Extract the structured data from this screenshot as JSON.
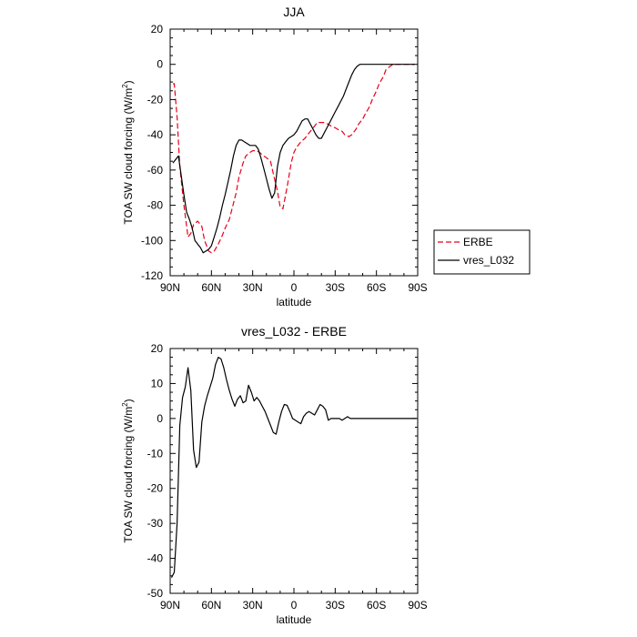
{
  "chart_data": [
    {
      "type": "line",
      "title": "JJA",
      "xlabel": "latitude",
      "ylabel": "TOA SW cloud forcing (W/m",
      "ylabel_sup": "2",
      "ylabel_end": ")",
      "xlim": [
        90,
        -90
      ],
      "ylim": [
        -120,
        20
      ],
      "xticks": [
        90,
        60,
        30,
        0,
        -30,
        -60,
        -90
      ],
      "xtick_labels": [
        "90N",
        "60N",
        "30N",
        "0",
        "30S",
        "60S",
        "90S"
      ],
      "yticks": [
        20,
        0,
        -20,
        -40,
        -60,
        -80,
        -100,
        -120
      ],
      "ytick_labels": [
        "20",
        "0",
        "-20",
        "-40",
        "-60",
        "-80",
        "-100",
        "-120"
      ],
      "legend": {
        "position": "right",
        "entries": [
          "ERBE",
          "vres_L032"
        ]
      },
      "series": [
        {
          "name": "ERBE",
          "color": "#e8001a",
          "dash": "dashed",
          "x": [
            88,
            87,
            85,
            83,
            80,
            77,
            75,
            73,
            70,
            67,
            65,
            62,
            60,
            58,
            55,
            52,
            50,
            47,
            45,
            42,
            40,
            37,
            35,
            32,
            30,
            27,
            25,
            22,
            20,
            17,
            15,
            12,
            10,
            8,
            5,
            2,
            0,
            -2,
            -5,
            -8,
            -10,
            -12,
            -15,
            -17,
            -20,
            -22,
            -25,
            -27,
            -30,
            -32,
            -35,
            -37,
            -40,
            -42,
            -45,
            -47,
            -50,
            -52,
            -55,
            -57,
            -60,
            -62,
            -65,
            -67,
            -70,
            -72,
            -75,
            -77,
            -80,
            -82,
            -85,
            -87
          ],
          "y": [
            -11,
            -11,
            -30,
            -58,
            -80,
            -98,
            -96,
            -91,
            -89,
            -92,
            -100,
            -106,
            -107,
            -106,
            -102,
            -97,
            -93,
            -88,
            -82,
            -73,
            -64,
            -56,
            -52,
            -50,
            -49,
            -49,
            -50,
            -52,
            -53,
            -55,
            -62,
            -72,
            -81,
            -82,
            -70,
            -56,
            -50,
            -47,
            -44,
            -42,
            -40,
            -38,
            -35,
            -33,
            -33,
            -33,
            -34,
            -35,
            -36,
            -37,
            -38,
            -40,
            -41,
            -40,
            -37,
            -34,
            -31,
            -28,
            -24,
            -20,
            -15,
            -11,
            -7,
            -3,
            -1,
            0,
            0,
            0,
            0,
            0,
            0,
            0
          ]
        },
        {
          "name": "vres_L032",
          "color": "#000000",
          "dash": "solid",
          "x": [
            88,
            86,
            84,
            82,
            80,
            78,
            76,
            74,
            72,
            70,
            68,
            66,
            64,
            62,
            60,
            58,
            56,
            54,
            52,
            50,
            48,
            46,
            44,
            42,
            40,
            38,
            36,
            34,
            32,
            30,
            28,
            26,
            24,
            22,
            20,
            18,
            16,
            14,
            12,
            10,
            8,
            6,
            4,
            2,
            0,
            -2,
            -4,
            -6,
            -8,
            -10,
            -12,
            -14,
            -16,
            -18,
            -20,
            -22,
            -24,
            -26,
            -28,
            -30,
            -32,
            -34,
            -36,
            -38,
            -40,
            -42,
            -44,
            -46,
            -48,
            -50,
            -52,
            -54,
            -56,
            -58,
            -60,
            -62,
            -64,
            -66,
            -68,
            -70,
            -72,
            -74,
            -76,
            -78,
            -80,
            -82,
            -84,
            -86,
            -88
          ],
          "y": [
            -56,
            -54,
            -52,
            -63,
            -74,
            -84,
            -88,
            -93,
            -100,
            -102,
            -104,
            -107,
            -106,
            -105,
            -103,
            -98,
            -93,
            -87,
            -80,
            -74,
            -67,
            -60,
            -52,
            -46,
            -43,
            -43,
            -44,
            -45,
            -46,
            -46,
            -46,
            -48,
            -53,
            -59,
            -65,
            -71,
            -76,
            -73,
            -58,
            -50,
            -46,
            -44,
            -42,
            -41,
            -40,
            -38,
            -35,
            -32,
            -31,
            -31,
            -34,
            -37,
            -40,
            -42,
            -42,
            -39,
            -36,
            -33,
            -30,
            -27,
            -24,
            -21,
            -18,
            -14,
            -10,
            -6,
            -3,
            -1,
            0,
            0,
            0,
            0,
            0,
            0,
            0,
            0,
            0,
            0,
            0,
            0,
            0,
            0,
            0,
            0,
            0,
            0,
            0,
            0,
            0
          ]
        }
      ]
    },
    {
      "type": "line",
      "title": "vres_L032 - ERBE",
      "xlabel": "latitude",
      "ylabel": "TOA SW cloud forcing (W/m",
      "ylabel_sup": "2",
      "ylabel_end": ")",
      "xlim": [
        90,
        -90
      ],
      "ylim": [
        -50,
        20
      ],
      "xticks": [
        90,
        60,
        30,
        0,
        -30,
        -60,
        -90
      ],
      "xtick_labels": [
        "90N",
        "60N",
        "30N",
        "0",
        "30S",
        "60S",
        "90S"
      ],
      "yticks": [
        20,
        10,
        0,
        -10,
        -20,
        -30,
        -40,
        -50
      ],
      "ytick_labels": [
        "20",
        "10",
        "0",
        "-10",
        "-20",
        "-30",
        "-40",
        "-50"
      ],
      "series": [
        {
          "color": "#000000",
          "dash": "solid",
          "x": [
            89,
            87,
            85,
            83,
            81,
            79,
            77,
            75,
            73,
            71,
            69,
            67,
            65,
            63,
            61,
            59,
            57,
            55,
            53,
            51,
            49,
            47,
            45,
            43,
            41,
            39,
            37,
            35,
            33,
            31,
            29,
            27,
            25,
            23,
            21,
            19,
            17,
            15,
            13,
            11,
            9,
            7,
            5,
            3,
            1,
            -1,
            -3,
            -5,
            -7,
            -9,
            -11,
            -13,
            -15,
            -17,
            -19,
            -21,
            -23,
            -25,
            -27,
            -29,
            -31,
            -33,
            -35,
            -37,
            -39,
            -41,
            -43,
            -45,
            -47,
            -49,
            -51,
            -53,
            -55,
            -57,
            -59,
            -61,
            -63,
            -65,
            -67,
            -69,
            -71,
            -73,
            -75,
            -77,
            -79,
            -81,
            -83,
            -85,
            -87,
            -89
          ],
          "y": [
            -45.5,
            -44,
            -30,
            -2,
            6,
            9,
            14.5,
            8,
            -9,
            -14,
            -12.5,
            -1,
            3.5,
            6.5,
            9,
            11.5,
            15.5,
            17.5,
            17,
            14.5,
            11,
            8,
            5.5,
            3.5,
            5.5,
            6.5,
            4.5,
            5,
            9.5,
            7.5,
            5,
            6,
            5,
            3.5,
            2,
            0,
            -2,
            -4,
            -4.5,
            -1,
            2,
            4,
            3.8,
            2,
            0,
            -0.5,
            -1,
            -1.5,
            0.5,
            1.5,
            2,
            1.5,
            1,
            2.5,
            4,
            3.5,
            2.5,
            -0.5,
            0,
            0,
            0,
            0,
            -0.5,
            0,
            0.5,
            0,
            0,
            0,
            0,
            0,
            0,
            0,
            0,
            0,
            0,
            0,
            0,
            0,
            0,
            0,
            0,
            0,
            0,
            0,
            0,
            0,
            0,
            0,
            0,
            0
          ]
        }
      ]
    }
  ]
}
